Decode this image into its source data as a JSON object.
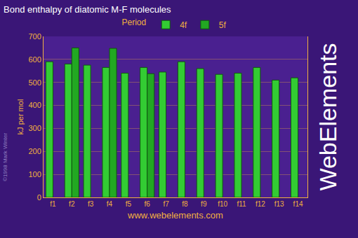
{
  "chart_data": {
    "type": "bar",
    "title": "Bond enthalpy of diatomic M-F molecules",
    "x_label": "www.webelements.com",
    "y_label": "kJ per mol",
    "legend_title": "Period",
    "categories": [
      "f1",
      "f2",
      "f3",
      "f4",
      "f5",
      "f6",
      "f7",
      "f8",
      "f9",
      "f10",
      "f11",
      "f12",
      "f13",
      "f14"
    ],
    "series": [
      {
        "name": "4f",
        "color": "#33cc33",
        "values": [
          590,
          580,
          575,
          565,
          540,
          565,
          545,
          590,
          560,
          535,
          540,
          565,
          510,
          520
        ]
      },
      {
        "name": "5f",
        "color": "#22a822",
        "values": [
          null,
          650,
          null,
          648,
          null,
          538,
          null,
          null,
          null,
          null,
          null,
          null,
          null,
          null
        ]
      }
    ],
    "ylim": [
      0,
      700
    ],
    "yticks": [
      0,
      100,
      200,
      300,
      400,
      500,
      600,
      700
    ],
    "grid": true,
    "legend": "top",
    "annotations": [
      "WebElements",
      "©1998 Mark Winter"
    ]
  }
}
